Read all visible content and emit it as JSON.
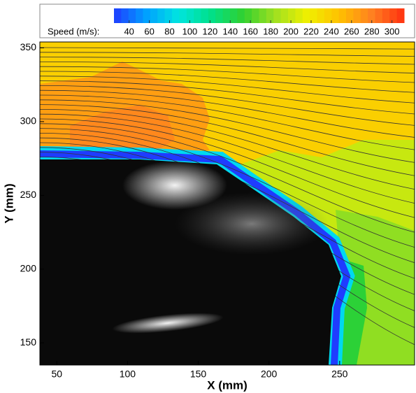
{
  "chart_data": {
    "type": "contour",
    "xlabel": "X (mm)",
    "ylabel": "Y (mm)",
    "xlim": [
      38,
      303
    ],
    "xticks": [
      50,
      100,
      150,
      200,
      250
    ],
    "ylim": [
      135,
      354
    ],
    "yticks": [
      150,
      200,
      250,
      300,
      350
    ],
    "colorbar": {
      "label": "Speed (m/s):",
      "lim": [
        25,
        312
      ],
      "ticks": [
        40,
        60,
        80,
        100,
        120,
        140,
        160,
        180,
        200,
        220,
        240,
        260,
        280,
        300
      ],
      "colors": [
        "#1f3cff",
        "#00a0ff",
        "#00e5e0",
        "#00e08a",
        "#30d030",
        "#a0e020",
        "#f0f000",
        "#ffc000",
        "#ff8020",
        "#ff3010"
      ]
    },
    "region_values": [
      238,
      265,
      276,
      200,
      180,
      150
    ]
  }
}
